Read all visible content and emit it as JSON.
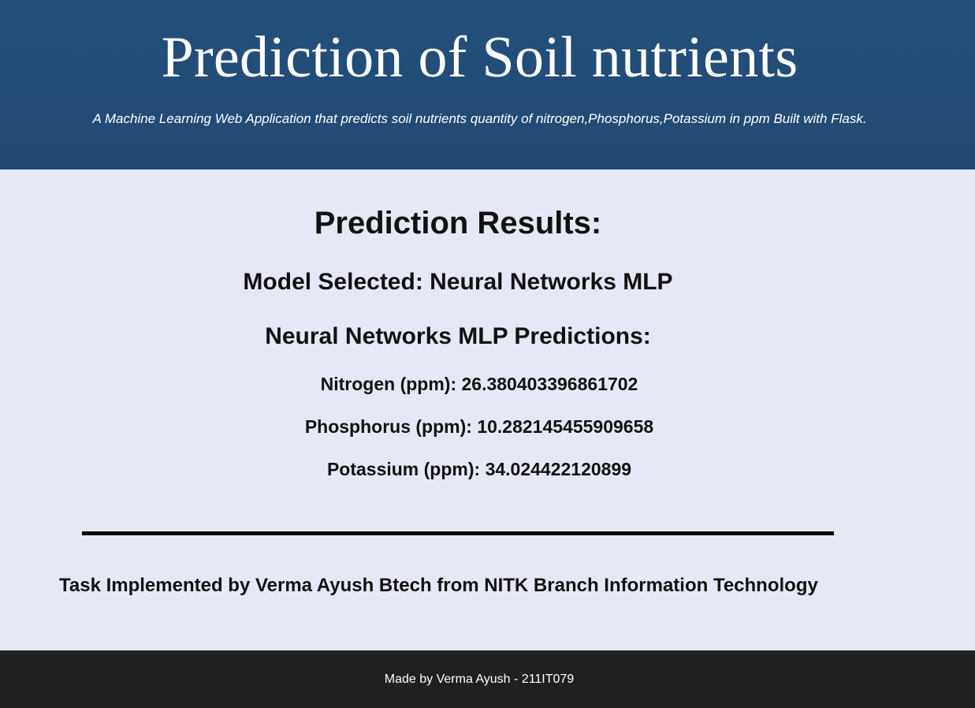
{
  "header": {
    "title": "Prediction of Soil nutrients",
    "subtitle": "A Machine Learning Web Application that predicts soil nutrients quantity of nitrogen,Phosphorus,Potassium in ppm Built with Flask."
  },
  "results": {
    "title": "Prediction Results:",
    "model_label": "Model Selected: ",
    "model_value": "Neural Networks MLP",
    "predictions_heading": "Neural Networks MLP Predictions:",
    "items": [
      {
        "label": "Nitrogen (ppm): ",
        "value": "26.380403396861702"
      },
      {
        "label": "Phosphorus (ppm): ",
        "value": "10.282145455909658"
      },
      {
        "label": "Potassium (ppm): ",
        "value": "34.024422120899"
      }
    ]
  },
  "credit": "Task Implemented by Verma Ayush Btech from NITK Branch Information Technology",
  "footer": {
    "text": "Made by Verma Ayush - 211IT079"
  },
  "colors": {
    "header_bg": "#214a74",
    "page_bg": "#e6e8f5",
    "footer_bg": "#202020",
    "text": "#111111",
    "divider": "#000000"
  }
}
